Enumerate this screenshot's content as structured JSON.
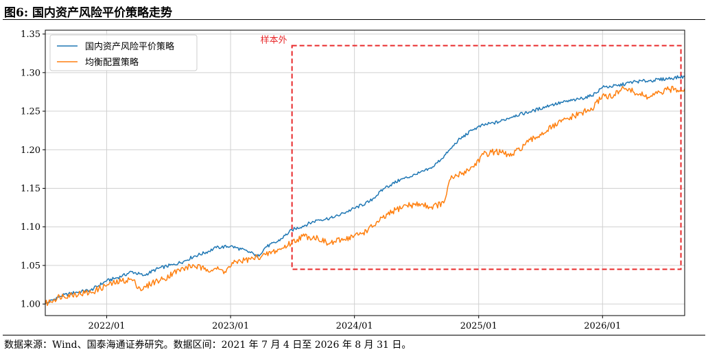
{
  "figure": {
    "title": "图6:  国内资产风险平价策略走势",
    "source": "数据来源：Wind、国泰海通证券研究。数据区间：2021 年 7 月 4 日至 2026 年 8 月 31 日。"
  },
  "chart_data": {
    "type": "line",
    "title": "",
    "xlabel": "",
    "ylabel": "",
    "x_ticks": [
      "2022/01",
      "2023/01",
      "2024/01",
      "2025/01",
      "2026/01"
    ],
    "y_ticks": [
      "1.00",
      "1.05",
      "1.10",
      "1.15",
      "1.20",
      "1.25",
      "1.30",
      "1.35"
    ],
    "xlim": [
      "2021-07-04",
      "2026-08-31"
    ],
    "ylim": [
      0.985,
      1.355
    ],
    "grid": true,
    "legend_position": "top-left",
    "annotation": {
      "label": "样本外",
      "x_range": [
        "2023-07-01",
        "2026-08-20"
      ],
      "y_range": [
        1.045,
        1.335
      ],
      "color": "#e8282a"
    },
    "series": [
      {
        "name": "国内资产风险平价策略",
        "color": "#1f77b4",
        "points": [
          [
            "2021-07-04",
            1.0
          ],
          [
            "2021-08-15",
            1.01
          ],
          [
            "2021-10-01",
            1.015
          ],
          [
            "2021-11-15",
            1.018
          ],
          [
            "2022-01-01",
            1.03
          ],
          [
            "2022-02-15",
            1.036
          ],
          [
            "2022-03-15",
            1.042
          ],
          [
            "2022-04-20",
            1.037
          ],
          [
            "2022-06-01",
            1.046
          ],
          [
            "2022-07-15",
            1.051
          ],
          [
            "2022-08-15",
            1.055
          ],
          [
            "2022-09-15",
            1.062
          ],
          [
            "2022-10-15",
            1.066
          ],
          [
            "2022-11-20",
            1.073
          ],
          [
            "2023-01-01",
            1.075
          ],
          [
            "2023-02-01",
            1.071
          ],
          [
            "2023-03-10",
            1.065
          ],
          [
            "2023-03-20",
            1.061
          ],
          [
            "2023-04-15",
            1.074
          ],
          [
            "2023-05-20",
            1.081
          ],
          [
            "2023-07-01",
            1.096
          ],
          [
            "2023-08-01",
            1.101
          ],
          [
            "2023-09-15",
            1.109
          ],
          [
            "2023-11-01",
            1.112
          ],
          [
            "2023-12-01",
            1.118
          ],
          [
            "2024-01-01",
            1.124
          ],
          [
            "2024-02-15",
            1.133
          ],
          [
            "2024-04-01",
            1.151
          ],
          [
            "2024-05-15",
            1.161
          ],
          [
            "2024-07-01",
            1.168
          ],
          [
            "2024-08-15",
            1.176
          ],
          [
            "2024-10-01",
            1.196
          ],
          [
            "2024-11-01",
            1.212
          ],
          [
            "2024-12-15",
            1.226
          ],
          [
            "2025-01-15",
            1.232
          ],
          [
            "2025-03-01",
            1.236
          ],
          [
            "2025-04-15",
            1.244
          ],
          [
            "2025-06-01",
            1.249
          ],
          [
            "2025-08-01",
            1.258
          ],
          [
            "2025-10-15",
            1.265
          ],
          [
            "2025-12-01",
            1.27
          ],
          [
            "2026-01-01",
            1.281
          ],
          [
            "2026-02-15",
            1.283
          ],
          [
            "2026-04-01",
            1.288
          ],
          [
            "2026-06-01",
            1.29
          ],
          [
            "2026-08-31",
            1.295
          ]
        ]
      },
      {
        "name": "均衡配置策略",
        "color": "#ff7f0e",
        "points": [
          [
            "2021-07-04",
            1.0
          ],
          [
            "2021-08-15",
            1.01
          ],
          [
            "2021-10-01",
            1.013
          ],
          [
            "2021-11-15",
            1.015
          ],
          [
            "2022-01-01",
            1.024
          ],
          [
            "2022-02-15",
            1.03
          ],
          [
            "2022-03-15",
            1.032
          ],
          [
            "2022-04-15",
            1.018
          ],
          [
            "2022-05-15",
            1.028
          ],
          [
            "2022-06-15",
            1.032
          ],
          [
            "2022-07-15",
            1.04
          ],
          [
            "2022-08-15",
            1.046
          ],
          [
            "2022-09-15",
            1.05
          ],
          [
            "2022-10-15",
            1.045
          ],
          [
            "2022-11-15",
            1.046
          ],
          [
            "2022-12-15",
            1.042
          ],
          [
            "2023-01-15",
            1.055
          ],
          [
            "2023-03-01",
            1.058
          ],
          [
            "2023-04-15",
            1.064
          ],
          [
            "2023-06-01",
            1.072
          ],
          [
            "2023-07-01",
            1.08
          ],
          [
            "2023-08-01",
            1.088
          ],
          [
            "2023-09-15",
            1.086
          ],
          [
            "2023-10-15",
            1.078
          ],
          [
            "2023-12-01",
            1.084
          ],
          [
            "2024-01-15",
            1.09
          ],
          [
            "2024-02-10",
            1.096
          ],
          [
            "2024-03-15",
            1.108
          ],
          [
            "2024-05-01",
            1.122
          ],
          [
            "2024-06-01",
            1.128
          ],
          [
            "2024-07-15",
            1.129
          ],
          [
            "2024-08-15",
            1.126
          ],
          [
            "2024-09-20",
            1.131
          ],
          [
            "2024-10-10",
            1.162
          ],
          [
            "2024-11-15",
            1.17
          ],
          [
            "2024-12-15",
            1.178
          ],
          [
            "2025-01-15",
            1.194
          ],
          [
            "2025-02-20",
            1.198
          ],
          [
            "2025-04-08",
            1.192
          ],
          [
            "2025-05-15",
            1.206
          ],
          [
            "2025-07-01",
            1.22
          ],
          [
            "2025-09-01",
            1.236
          ],
          [
            "2025-11-01",
            1.248
          ],
          [
            "2025-12-01",
            1.252
          ],
          [
            "2026-01-01",
            1.271
          ],
          [
            "2026-02-01",
            1.268
          ],
          [
            "2026-03-01",
            1.282
          ],
          [
            "2026-04-01",
            1.275
          ],
          [
            "2026-05-15",
            1.268
          ],
          [
            "2026-06-20",
            1.274
          ],
          [
            "2026-07-15",
            1.278
          ],
          [
            "2026-08-31",
            1.279
          ]
        ]
      }
    ]
  }
}
